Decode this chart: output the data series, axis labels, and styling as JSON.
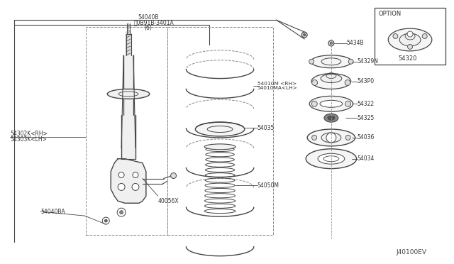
{
  "bg_color": "#ffffff",
  "line_color": "#444444",
  "fig_w": 6.4,
  "fig_h": 3.72,
  "dpi": 100,
  "diagram_id": "J40100EV",
  "labels": {
    "top1": "54040B",
    "top2": "ⓝ0B91B-3401A",
    "top2b": "(6)",
    "absorber_rh": "54302K<RH>",
    "absorber_lh": "54303K<LH>",
    "bracket": "54040BA",
    "bolt": "40056X",
    "spring_rh": "54010M <RH>",
    "spring_lh": "54010MA<LH>",
    "seat": "54035",
    "bump": "54050M",
    "option_title": "OPTION",
    "option_part": "54320",
    "r1_lbl": "5434B",
    "r2_lbl": "54329N",
    "r3_lbl": "543P0",
    "r4_lbl": "54322",
    "r5_lbl": "54325",
    "r6_lbl": "54036",
    "r7_lbl": "54034"
  }
}
